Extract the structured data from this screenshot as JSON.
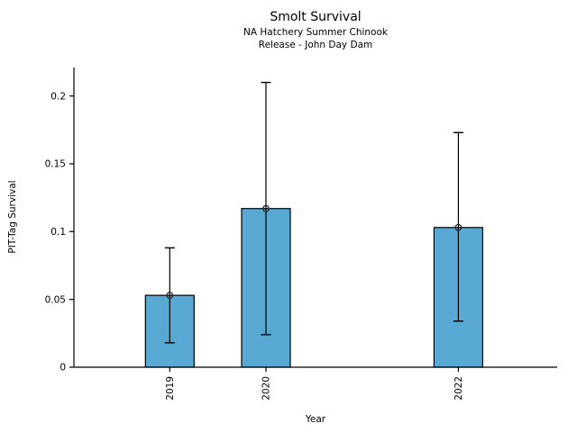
{
  "chart_data": {
    "type": "bar",
    "title": "Smolt Survival",
    "subtitle1": "NA Hatchery Summer Chinook",
    "subtitle2": "Release - John Day Dam",
    "xlabel": "Year",
    "ylabel": "PIT-Tag Survival",
    "categories": [
      "2019",
      "2020",
      "2022"
    ],
    "x_numeric": [
      2019,
      2020,
      2022
    ],
    "values": [
      0.053,
      0.117,
      0.103
    ],
    "ci_low": [
      0.018,
      0.024,
      0.034
    ],
    "ci_high": [
      0.088,
      0.21,
      0.173
    ],
    "yticks": [
      0,
      0.05,
      0.1,
      0.15,
      0.2
    ],
    "ytick_labels": [
      "0",
      "0.05",
      "0.1",
      "0.15",
      "0.2"
    ],
    "ylim": [
      0,
      0.221
    ],
    "grid": false,
    "legend": null,
    "marker": "open-circle",
    "bar_color": "#57a9d4",
    "bar_edge_color": "#000000",
    "errorbar_color": "#000000",
    "axis_color": "#000000",
    "text_color": "#000000"
  }
}
